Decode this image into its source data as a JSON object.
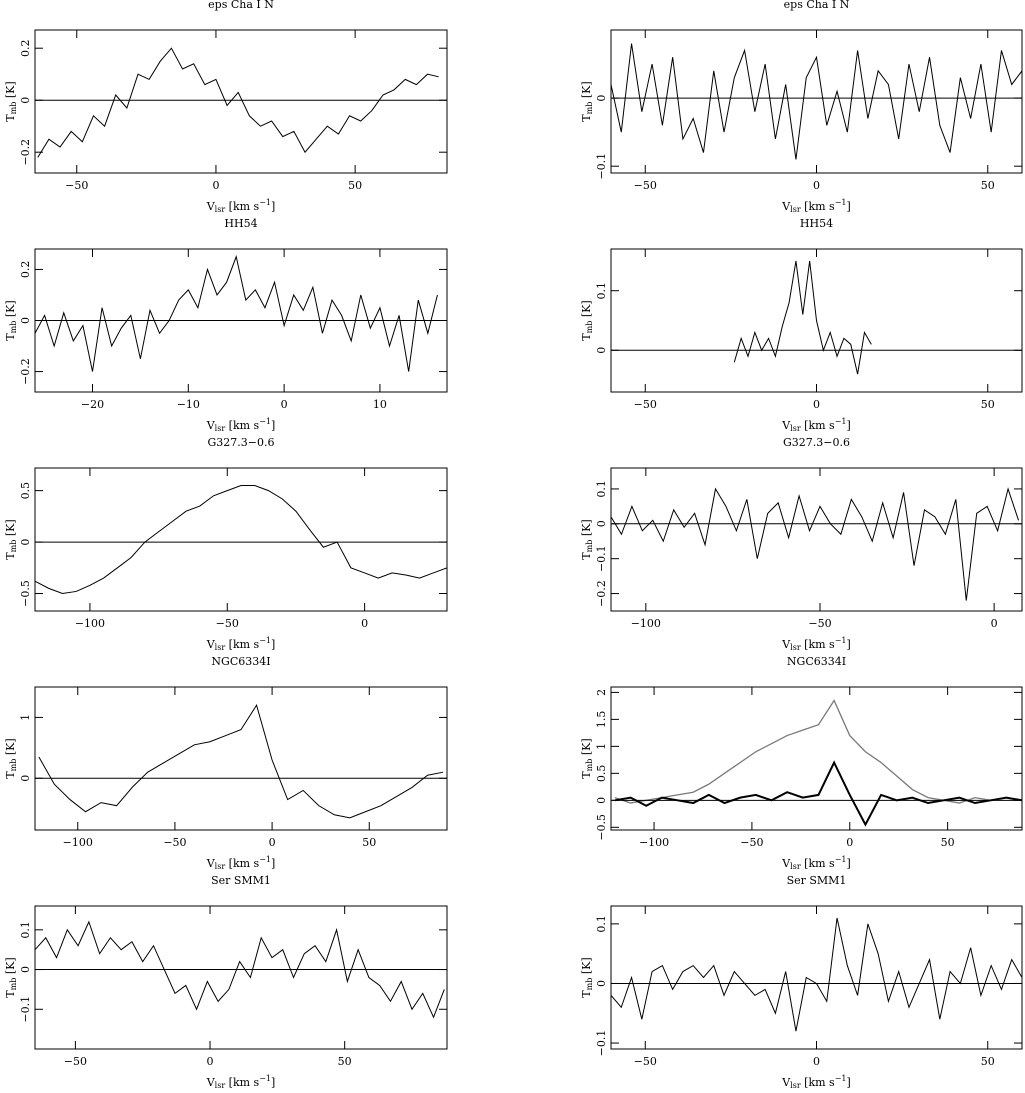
{
  "chart_data": [
    {
      "type": "line",
      "title": "eps Cha I N",
      "x_label": [
        "V",
        "lsr",
        " [km s",
        "−1",
        "]"
      ],
      "y_label": [
        "T",
        "mb",
        " [K]"
      ],
      "hline": 0,
      "xlim": [
        -65,
        83
      ],
      "ylim": [
        -0.28,
        0.27
      ],
      "xticks": [
        {
          "value": -50,
          "label": "−50"
        },
        0,
        50
      ],
      "yticks": [
        {
          "value": -0.2,
          "label": "−0.2"
        },
        0,
        0.2
      ],
      "x": [
        -64,
        -60,
        -56,
        -52,
        -48,
        -44,
        -40,
        -36,
        -32,
        -28,
        -24,
        -20,
        -16,
        -12,
        -8,
        -4,
        0,
        4,
        8,
        12,
        16,
        20,
        24,
        28,
        32,
        36,
        40,
        44,
        48,
        52,
        56,
        60,
        64,
        68,
        72,
        76,
        80
      ],
      "series": [
        {
          "color": "#000000",
          "linewidth": 1,
          "values": [
            -0.22,
            -0.15,
            -0.18,
            -0.12,
            -0.16,
            -0.06,
            -0.1,
            0.02,
            -0.03,
            0.1,
            0.08,
            0.15,
            0.2,
            0.12,
            0.14,
            0.06,
            0.08,
            -0.02,
            0.03,
            -0.06,
            -0.1,
            -0.08,
            -0.14,
            -0.12,
            -0.2,
            -0.15,
            -0.1,
            -0.13,
            -0.06,
            -0.08,
            -0.04,
            0.02,
            0.04,
            0.08,
            0.06,
            0.1,
            0.09
          ]
        }
      ]
    },
    {
      "type": "line",
      "title": "eps Cha I N",
      "x_label": [
        "V",
        "lsr",
        " [km s",
        "−1",
        "]"
      ],
      "y_label": [
        "T",
        "mb",
        " [K]"
      ],
      "hline": 0,
      "xlim": [
        -60,
        60
      ],
      "ylim": [
        -0.11,
        0.1
      ],
      "xticks": [
        {
          "value": -50,
          "label": "−50"
        },
        0,
        50
      ],
      "yticks": [
        {
          "value": -0.1,
          "label": "−0.1"
        },
        0
      ],
      "x": [
        -60,
        -57,
        -54,
        -51,
        -48,
        -45,
        -42,
        -39,
        -36,
        -33,
        -30,
        -27,
        -24,
        -21,
        -18,
        -15,
        -12,
        -9,
        -6,
        -3,
        0,
        3,
        6,
        9,
        12,
        15,
        18,
        21,
        24,
        27,
        30,
        33,
        36,
        39,
        42,
        45,
        48,
        51,
        54,
        57,
        60
      ],
      "series": [
        {
          "color": "#000000",
          "linewidth": 1,
          "values": [
            0.02,
            -0.05,
            0.08,
            -0.02,
            0.05,
            -0.04,
            0.06,
            -0.06,
            -0.03,
            -0.08,
            0.04,
            -0.05,
            0.03,
            0.07,
            -0.02,
            0.05,
            -0.06,
            0.02,
            -0.09,
            0.03,
            0.06,
            -0.04,
            0.01,
            -0.05,
            0.07,
            -0.03,
            0.04,
            0.02,
            -0.06,
            0.05,
            -0.02,
            0.06,
            -0.04,
            -0.08,
            0.03,
            -0.03,
            0.05,
            -0.05,
            0.07,
            0.02,
            0.04
          ]
        }
      ]
    },
    {
      "type": "line",
      "title": "HH54",
      "x_label": [
        "V",
        "lsr",
        " [km s",
        "−1",
        "]"
      ],
      "y_label": [
        "T",
        "mb",
        " [K]"
      ],
      "hline": 0,
      "xlim": [
        -26,
        17
      ],
      "ylim": [
        -0.28,
        0.28
      ],
      "xticks": [
        {
          "value": -20,
          "label": "−20"
        },
        {
          "value": -10,
          "label": "−10"
        },
        0,
        10
      ],
      "yticks": [
        {
          "value": -0.2,
          "label": "−0.2"
        },
        0,
        0.2
      ],
      "x": [
        -26,
        -25,
        -24,
        -23,
        -22,
        -21,
        -20,
        -19,
        -18,
        -17,
        -16,
        -15,
        -14,
        -13,
        -12,
        -11,
        -10,
        -9,
        -8,
        -7,
        -6,
        -5,
        -4,
        -3,
        -2,
        -1,
        0,
        1,
        2,
        3,
        4,
        5,
        6,
        7,
        8,
        9,
        10,
        11,
        12,
        13,
        14,
        15,
        16
      ],
      "series": [
        {
          "color": "#000000",
          "linewidth": 1,
          "values": [
            -0.05,
            0.02,
            -0.1,
            0.03,
            -0.08,
            -0.02,
            -0.2,
            0.05,
            -0.1,
            -0.03,
            0.02,
            -0.15,
            0.04,
            -0.05,
            0,
            0.08,
            0.12,
            0.05,
            0.2,
            0.1,
            0.15,
            0.25,
            0.08,
            0.12,
            0.05,
            0.15,
            -0.02,
            0.1,
            0.04,
            0.13,
            -0.05,
            0.08,
            0.02,
            -0.08,
            0.1,
            -0.03,
            0.05,
            -0.1,
            0.02,
            -0.2,
            0.08,
            -0.05,
            0.1
          ]
        }
      ]
    },
    {
      "type": "line",
      "title": "HH54",
      "x_label": [
        "V",
        "lsr",
        " [km s",
        "−1",
        "]"
      ],
      "y_label": [
        "T",
        "mb",
        " [K]"
      ],
      "hline": 0,
      "xlim": [
        -60,
        60
      ],
      "ylim": [
        -0.07,
        0.17
      ],
      "xticks": [
        {
          "value": -50,
          "label": "−50"
        },
        0,
        50
      ],
      "yticks": [
        0,
        0.1
      ],
      "x": [
        -24,
        -22,
        -20,
        -18,
        -16,
        -14,
        -12,
        -10,
        -8,
        -6,
        -4,
        -2,
        0,
        2,
        4,
        6,
        8,
        10,
        12,
        14,
        16
      ],
      "series": [
        {
          "color": "#000000",
          "linewidth": 1,
          "values": [
            -0.02,
            0.02,
            -0.01,
            0.03,
            0,
            0.02,
            -0.01,
            0.04,
            0.08,
            0.15,
            0.06,
            0.15,
            0.05,
            0,
            0.03,
            -0.01,
            0.02,
            0.01,
            -0.04,
            0.03,
            0.01
          ]
        }
      ]
    },
    {
      "type": "line",
      "title": "G327.3−0.6",
      "x_label": [
        "V",
        "lsr",
        " [km s",
        "−1",
        "]"
      ],
      "y_label": [
        "T",
        "mb",
        " [K]"
      ],
      "hline": 0,
      "xlim": [
        -120,
        30
      ],
      "ylim": [
        -0.67,
        0.72
      ],
      "xticks": [
        {
          "value": -100,
          "label": "−100"
        },
        {
          "value": -50,
          "label": "−50"
        },
        0
      ],
      "yticks": [
        {
          "value": -0.5,
          "label": "−0.5"
        },
        0,
        0.5
      ],
      "x": [
        -120,
        -115,
        -110,
        -105,
        -100,
        -95,
        -90,
        -85,
        -80,
        -75,
        -70,
        -65,
        -60,
        -55,
        -50,
        -45,
        -40,
        -35,
        -30,
        -25,
        -20,
        -15,
        -10,
        -5,
        0,
        5,
        10,
        15,
        20,
        25,
        30
      ],
      "series": [
        {
          "color": "#000000",
          "linewidth": 1,
          "values": [
            -0.38,
            -0.45,
            -0.5,
            -0.48,
            -0.42,
            -0.35,
            -0.25,
            -0.15,
            0,
            0.1,
            0.2,
            0.3,
            0.35,
            0.45,
            0.5,
            0.55,
            0.55,
            0.5,
            0.42,
            0.3,
            0.12,
            -0.05,
            0,
            -0.25,
            -0.3,
            -0.35,
            -0.3,
            -0.32,
            -0.35,
            -0.3,
            -0.25
          ]
        }
      ]
    },
    {
      "type": "line",
      "title": "G327.3−0.6",
      "x_label": [
        "V",
        "lsr",
        " [km s",
        "−1",
        "]"
      ],
      "y_label": [
        "T",
        "mb",
        " [K]"
      ],
      "hline": 0,
      "xlim": [
        -110,
        8
      ],
      "ylim": [
        -0.25,
        0.16
      ],
      "xticks": [
        {
          "value": -100,
          "label": "−100"
        },
        {
          "value": -50,
          "label": "−50"
        },
        0
      ],
      "yticks": [
        {
          "value": -0.2,
          "label": "−0.2"
        },
        {
          "value": -0.1,
          "label": "−0.1"
        },
        0,
        0.1
      ],
      "x": [
        -110,
        -107,
        -104,
        -101,
        -98,
        -95,
        -92,
        -89,
        -86,
        -83,
        -80,
        -77,
        -74,
        -71,
        -68,
        -65,
        -62,
        -59,
        -56,
        -53,
        -50,
        -47,
        -44,
        -41,
        -38,
        -35,
        -32,
        -29,
        -26,
        -23,
        -20,
        -17,
        -14,
        -11,
        -8,
        -5,
        -2,
        1,
        4,
        7
      ],
      "series": [
        {
          "color": "#000000",
          "linewidth": 1,
          "values": [
            0.02,
            -0.03,
            0.05,
            -0.02,
            0.01,
            -0.05,
            0.04,
            -0.01,
            0.03,
            -0.06,
            0.1,
            0.05,
            -0.02,
            0.07,
            -0.1,
            0.03,
            0.06,
            -0.04,
            0.08,
            -0.02,
            0.05,
            0,
            -0.03,
            0.07,
            0.02,
            -0.05,
            0.06,
            -0.04,
            0.09,
            -0.12,
            0.04,
            0.02,
            -0.03,
            0.07,
            -0.22,
            0.03,
            0.05,
            -0.02,
            0.1,
            0.01
          ]
        }
      ]
    },
    {
      "type": "line",
      "title": "NGC6334I",
      "x_label": [
        "V",
        "lsr",
        " [km s",
        "−1",
        "]"
      ],
      "y_label": [
        "T",
        "mb",
        " [K]"
      ],
      "hline": 0,
      "xlim": [
        -122,
        90
      ],
      "ylim": [
        -0.85,
        1.5
      ],
      "xticks": [
        {
          "value": -100,
          "label": "−100"
        },
        {
          "value": -50,
          "label": "−50"
        },
        0,
        50
      ],
      "yticks": [
        0,
        1
      ],
      "x": [
        -120,
        -112,
        -104,
        -96,
        -88,
        -80,
        -72,
        -64,
        -56,
        -48,
        -40,
        -32,
        -24,
        -16,
        -8,
        0,
        8,
        16,
        24,
        32,
        40,
        48,
        56,
        64,
        72,
        80,
        88
      ],
      "series": [
        {
          "color": "#000000",
          "linewidth": 1,
          "values": [
            0.35,
            -0.1,
            -0.35,
            -0.55,
            -0.4,
            -0.45,
            -0.15,
            0.1,
            0.25,
            0.4,
            0.55,
            0.6,
            0.7,
            0.8,
            1.2,
            0.3,
            -0.35,
            -0.2,
            -0.45,
            -0.6,
            -0.65,
            -0.55,
            -0.45,
            -0.3,
            -0.15,
            0.05,
            0.1
          ]
        }
      ]
    },
    {
      "type": "line",
      "title": "NGC6334I",
      "x_label": [
        "V",
        "lsr",
        " [km s",
        "−1",
        "]"
      ],
      "y_label": [
        "T",
        "mb",
        " [K]"
      ],
      "hline": 0,
      "xlim": [
        -122,
        88
      ],
      "ylim": [
        -0.55,
        2.1
      ],
      "xticks": [
        {
          "value": -100,
          "label": "−100"
        },
        {
          "value": -50,
          "label": "−50"
        },
        0,
        50
      ],
      "yticks": [
        {
          "value": -0.5,
          "label": "−0.5"
        },
        0,
        0.5,
        1,
        1.5,
        2
      ],
      "x": [
        -120,
        -112,
        -104,
        -96,
        -88,
        -80,
        -72,
        -64,
        -56,
        -48,
        -40,
        -32,
        -24,
        -16,
        -8,
        0,
        8,
        16,
        24,
        32,
        40,
        48,
        56,
        64,
        72,
        80,
        88
      ],
      "series": [
        {
          "color": "#7a7a7a",
          "linewidth": 1.3,
          "values": [
            0.05,
            -0.05,
            0,
            0.05,
            0.1,
            0.15,
            0.3,
            0.5,
            0.7,
            0.9,
            1.05,
            1.2,
            1.3,
            1.4,
            1.85,
            1.2,
            0.9,
            0.7,
            0.45,
            0.2,
            0.05,
            0,
            -0.05,
            0.05,
            0,
            0.05,
            0
          ]
        },
        {
          "color": "#000000",
          "linewidth": 2,
          "values": [
            0,
            0.05,
            -0.1,
            0.05,
            0,
            -0.05,
            0.1,
            -0.05,
            0.05,
            0.1,
            0,
            0.15,
            0.05,
            0.1,
            0.7,
            0.1,
            -0.45,
            0.1,
            0,
            0.05,
            -0.05,
            0,
            0.05,
            -0.05,
            0,
            0.05,
            0
          ]
        }
      ]
    },
    {
      "type": "line",
      "title": "Ser SMM1",
      "x_label": [
        "V",
        "lsr",
        " [km s",
        "−1",
        "]"
      ],
      "y_label": [
        "T",
        "mb",
        " [K]"
      ],
      "hline": 0,
      "xlim": [
        -65,
        88
      ],
      "ylim": [
        -0.2,
        0.16
      ],
      "xticks": [
        {
          "value": -50,
          "label": "−50"
        },
        0,
        50
      ],
      "yticks": [
        {
          "value": -0.1,
          "label": "−0.1"
        },
        0,
        0.1
      ],
      "x": [
        -65,
        -61,
        -57,
        -53,
        -49,
        -45,
        -41,
        -37,
        -33,
        -29,
        -25,
        -21,
        -17,
        -13,
        -9,
        -5,
        -1,
        3,
        7,
        11,
        15,
        19,
        23,
        27,
        31,
        35,
        39,
        43,
        47,
        51,
        55,
        59,
        63,
        67,
        71,
        75,
        79,
        83,
        87
      ],
      "series": [
        {
          "color": "#000000",
          "linewidth": 1,
          "values": [
            0.05,
            0.08,
            0.03,
            0.1,
            0.06,
            0.12,
            0.04,
            0.08,
            0.05,
            0.07,
            0.02,
            0.06,
            0,
            -0.06,
            -0.04,
            -0.1,
            -0.03,
            -0.08,
            -0.05,
            0.02,
            -0.02,
            0.08,
            0.03,
            0.05,
            -0.02,
            0.04,
            0.06,
            0.02,
            0.1,
            -0.03,
            0.05,
            -0.02,
            -0.04,
            -0.08,
            -0.03,
            -0.1,
            -0.06,
            -0.12,
            -0.05
          ]
        }
      ]
    },
    {
      "type": "line",
      "title": "Ser SMM1",
      "x_label": [
        "V",
        "lsr",
        " [km s",
        "−1",
        "]"
      ],
      "y_label": [
        "T",
        "mb",
        " [K]"
      ],
      "hline": 0,
      "xlim": [
        -60,
        60
      ],
      "ylim": [
        -0.11,
        0.13
      ],
      "xticks": [
        {
          "value": -50,
          "label": "−50"
        },
        0,
        50
      ],
      "yticks": [
        {
          "value": -0.1,
          "label": "−0.1"
        },
        0,
        0.1
      ],
      "x": [
        -60,
        -57,
        -54,
        -51,
        -48,
        -45,
        -42,
        -39,
        -36,
        -33,
        -30,
        -27,
        -24,
        -21,
        -18,
        -15,
        -12,
        -9,
        -6,
        -3,
        0,
        3,
        6,
        9,
        12,
        15,
        18,
        21,
        24,
        27,
        30,
        33,
        36,
        39,
        42,
        45,
        48,
        51,
        54,
        57,
        60
      ],
      "series": [
        {
          "color": "#000000",
          "linewidth": 1,
          "values": [
            -0.02,
            -0.04,
            0.01,
            -0.06,
            0.02,
            0.03,
            -0.01,
            0.02,
            0.03,
            0.01,
            0.03,
            -0.02,
            0.02,
            0,
            -0.02,
            -0.01,
            -0.05,
            0.02,
            -0.08,
            0.01,
            0,
            -0.03,
            0.11,
            0.03,
            -0.02,
            0.1,
            0.05,
            -0.03,
            0.02,
            -0.04,
            0,
            0.04,
            -0.06,
            0.02,
            0,
            0.06,
            -0.02,
            0.03,
            -0.01,
            0.04,
            0.01
          ]
        }
      ]
    }
  ]
}
